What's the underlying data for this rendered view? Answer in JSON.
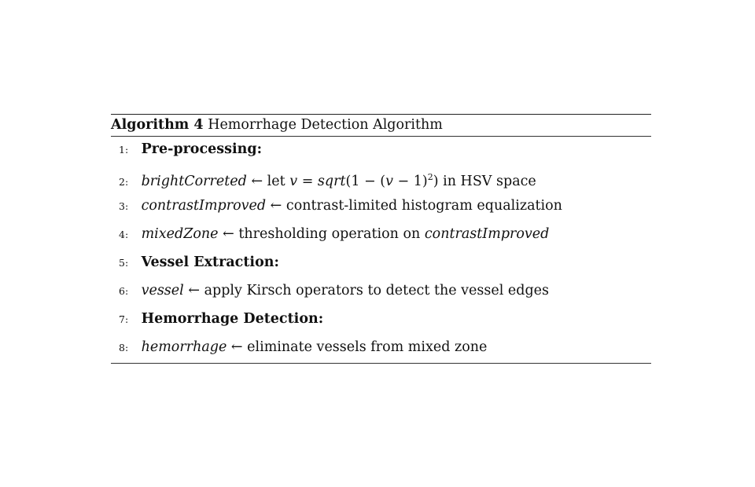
{
  "algorithm": {
    "caption_label": "Algorithm 4",
    "caption_title": "Hemorrhage Detection Algorithm",
    "arrow": "←",
    "steps": [
      {
        "num": "1:",
        "heading": "Pre-processing:"
      },
      {
        "num": "2:",
        "var": "brightCorreted",
        "text_a": " let ",
        "math_v": "v",
        "text_b": " = ",
        "math_sqrt": "sqrt",
        "text_c": "(1 − (",
        "math_v2": "v",
        "text_d": " − 1)",
        "sup": "2",
        "text_e": ") in HSV space"
      },
      {
        "num": "3:",
        "var": "contrastImproved",
        "text": " contrast-limited histogram equalization"
      },
      {
        "num": "4:",
        "var": "mixedZone",
        "text": " thresholding operation on ",
        "var2": "contrastImproved"
      },
      {
        "num": "5:",
        "heading": "Vessel Extraction:"
      },
      {
        "num": "6:",
        "var": "vessel",
        "text": " apply Kirsch operators to detect the vessel edges"
      },
      {
        "num": "7:",
        "heading": "Hemorrhage Detection:"
      },
      {
        "num": "8:",
        "var": "hemorrhage",
        "text": " eliminate vessels from mixed zone"
      }
    ]
  }
}
